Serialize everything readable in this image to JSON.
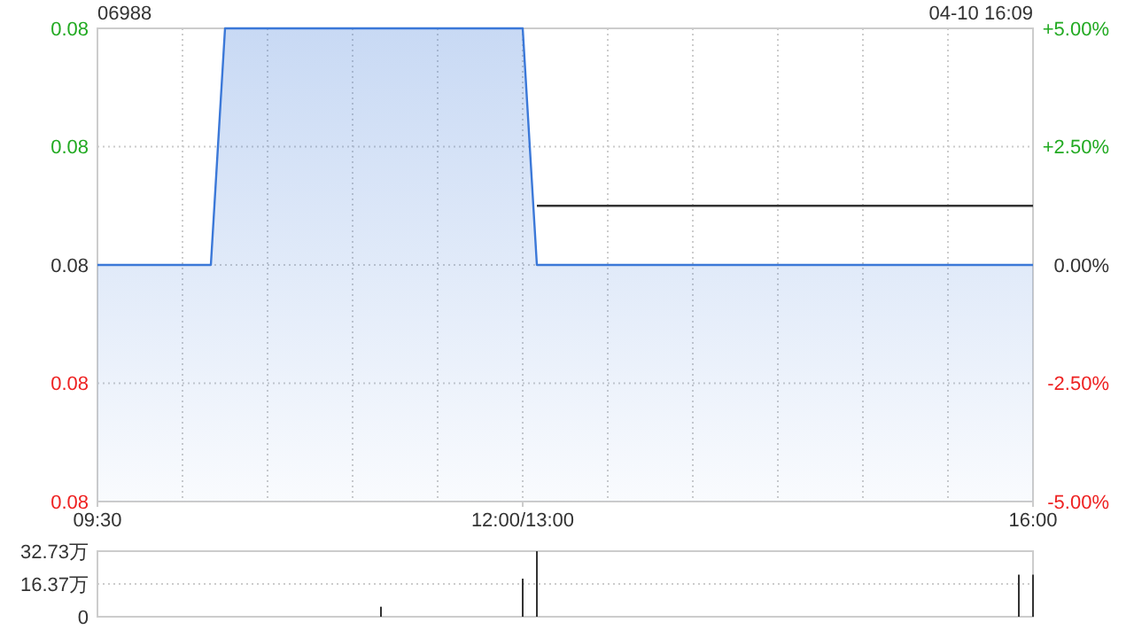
{
  "chart_data": [
    {
      "type": "area",
      "title": "06988",
      "annotations": [
        "04-10 16:09"
      ],
      "grid": true,
      "categories": [
        "09:30",
        null,
        null,
        null,
        null,
        null,
        null,
        null,
        null,
        null,
        null,
        null,
        null,
        null,
        null,
        null,
        null,
        null,
        null,
        null,
        null,
        null,
        null,
        null,
        null,
        null,
        null,
        null,
        null,
        null,
        "12:00/13:00",
        null,
        null,
        null,
        null,
        null,
        null,
        null,
        null,
        null,
        null,
        null,
        null,
        null,
        null,
        null,
        null,
        null,
        null,
        null,
        null,
        null,
        null,
        null,
        null,
        null,
        null,
        null,
        null,
        null,
        null,
        null,
        null,
        null,
        null,
        null,
        "16:00"
      ],
      "ylim": [
        0.076,
        0.084
      ],
      "yticks": [
        {
          "value": 0.076,
          "label": "0.08"
        },
        {
          "value": 0.078,
          "label": "0.08"
        },
        {
          "value": 0.08,
          "label": "0.08"
        },
        {
          "value": 0.082,
          "label": "0.08"
        },
        {
          "value": 0.084,
          "label": "0.08"
        }
      ],
      "y2lim": [
        -5,
        5
      ],
      "y2ticks": [
        {
          "value": -5,
          "label": "-5.00%"
        },
        {
          "value": -2.5,
          "label": "-2.50%"
        },
        {
          "value": 0,
          "label": "0.00%"
        },
        {
          "value": 2.5,
          "label": "+2.50%"
        },
        {
          "value": 5,
          "label": "+5.00%"
        }
      ],
      "series": [
        {
          "color": "#3b78d8",
          "values": [
            0.08,
            0.08,
            0.08,
            0.08,
            0.08,
            0.08,
            0.08,
            0.08,
            0.08,
            0.084,
            0.084,
            0.084,
            0.084,
            0.084,
            0.084,
            0.084,
            0.084,
            0.084,
            0.084,
            0.084,
            0.084,
            0.084,
            0.084,
            0.084,
            0.084,
            0.084,
            0.084,
            0.084,
            0.084,
            0.084,
            0.084,
            0.08,
            0.08,
            0.08,
            0.08,
            0.08,
            0.08,
            0.08,
            0.08,
            0.08,
            0.08,
            0.08,
            0.08,
            0.08,
            0.08,
            0.08,
            0.08,
            0.08,
            0.08,
            0.08,
            0.08,
            0.08,
            0.08,
            0.08,
            0.08,
            0.08,
            0.08,
            0.08,
            0.08,
            0.08,
            0.08,
            0.08,
            0.08,
            0.08,
            0.08,
            0.08,
            0.08
          ]
        },
        {
          "type": "line",
          "color": "#333333",
          "values": [
            null,
            null,
            null,
            null,
            null,
            null,
            null,
            null,
            null,
            null,
            null,
            null,
            null,
            null,
            null,
            null,
            null,
            null,
            null,
            null,
            null,
            null,
            null,
            null,
            null,
            null,
            null,
            null,
            null,
            null,
            null,
            0.081,
            0.081,
            0.081,
            0.081,
            0.081,
            0.081,
            0.081,
            0.081,
            0.081,
            0.081,
            0.081,
            0.081,
            0.081,
            0.081,
            0.081,
            0.081,
            0.081,
            0.081,
            0.081,
            0.081,
            0.081,
            0.081,
            0.081,
            0.081,
            0.081,
            0.081,
            0.081,
            0.081,
            0.081,
            0.081,
            0.081,
            0.081,
            0.081,
            0.081,
            0.081,
            0.081
          ]
        }
      ]
    },
    {
      "type": "bar",
      "grid": "y",
      "tick_labels": "y",
      "color": "#333333",
      "categories": [
        null,
        null,
        null,
        null,
        null,
        null,
        null,
        null,
        null,
        null,
        null,
        null,
        null,
        null,
        null,
        null,
        null,
        null,
        null,
        null,
        null,
        null,
        null,
        null,
        null,
        null,
        null,
        null,
        null,
        null,
        null,
        null,
        null,
        null,
        null,
        null,
        null,
        null,
        null,
        null,
        null,
        null,
        null,
        null,
        null,
        null,
        null,
        null,
        null,
        null,
        null,
        null,
        null,
        null,
        null,
        null,
        null,
        null,
        null,
        null,
        null,
        null,
        null,
        null,
        null,
        null,
        null
      ],
      "ylim": [
        0,
        32.73
      ],
      "yticks": [
        {
          "value": 0,
          "label": "0"
        },
        {
          "value": 16.37,
          "label": "16.37万"
        },
        {
          "value": 32.73,
          "label": "32.73万"
        }
      ],
      "values": [
        null,
        null,
        null,
        null,
        null,
        null,
        null,
        null,
        null,
        null,
        null,
        null,
        null,
        null,
        null,
        null,
        null,
        null,
        null,
        null,
        5,
        null,
        null,
        null,
        null,
        null,
        null,
        null,
        null,
        null,
        19,
        32.7,
        null,
        null,
        null,
        null,
        null,
        null,
        null,
        null,
        null,
        null,
        null,
        null,
        null,
        null,
        null,
        null,
        null,
        null,
        null,
        null,
        null,
        null,
        null,
        null,
        null,
        null,
        null,
        null,
        null,
        null,
        null,
        null,
        null,
        21,
        21
      ]
    }
  ]
}
